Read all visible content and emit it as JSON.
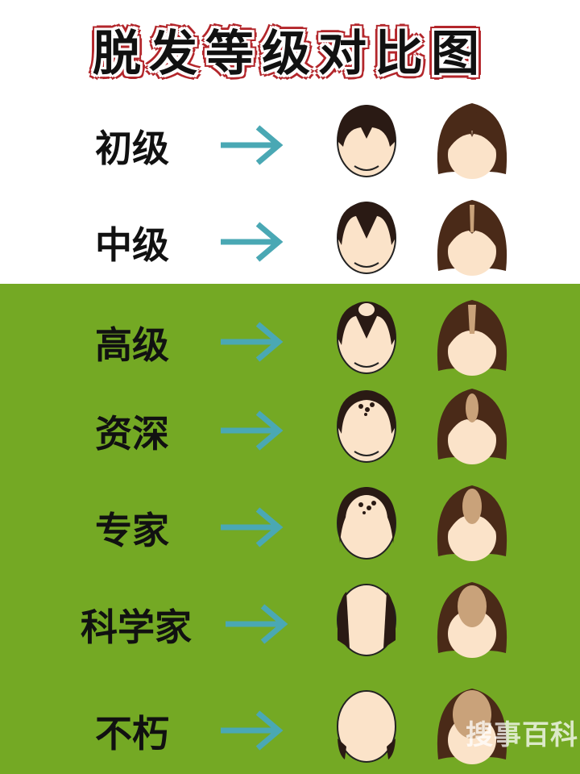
{
  "title": "脱发等级对比图",
  "colors": {
    "green": "#74a924",
    "arrow": "#4aa8b4",
    "title_outline": "#b3262b",
    "man_hair": "#2a1a14",
    "woman_hair": "#4a2a18",
    "skin": "#fbe3c9"
  },
  "levels": [
    {
      "label": "初级"
    },
    {
      "label": "中级"
    },
    {
      "label": "高级"
    },
    {
      "label": "资深"
    },
    {
      "label": "专家"
    },
    {
      "label": "科学家"
    },
    {
      "label": "不朽"
    }
  ],
  "watermark": "搜事百科"
}
